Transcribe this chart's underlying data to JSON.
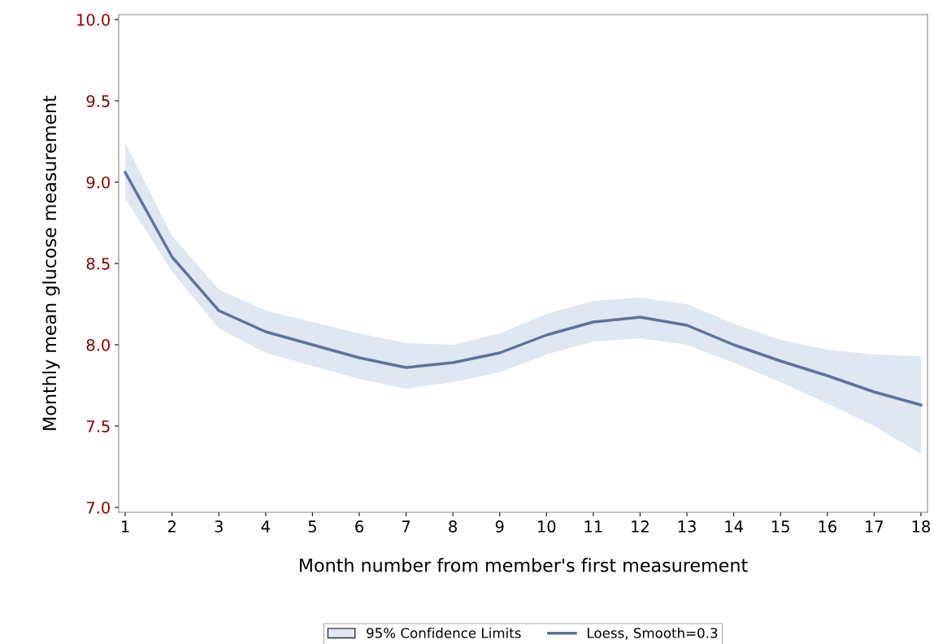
{
  "chart_data": {
    "type": "line",
    "xlabel": "Month number from member's first measurement",
    "ylabel": "Monthly mean glucose measurement",
    "annotations": [
      "95% Confidence Limits"
    ],
    "x": [
      1,
      2,
      3,
      4,
      5,
      6,
      7,
      8,
      9,
      10,
      11,
      12,
      13,
      14,
      15,
      16,
      17,
      18
    ],
    "series": [
      {
        "name": "Loess, Smooth=0.3",
        "color": "#5f7399",
        "values": [
          9.06,
          8.54,
          8.21,
          8.08,
          8.0,
          7.92,
          7.86,
          7.89,
          7.95,
          8.06,
          8.14,
          8.17,
          8.12,
          8.0,
          7.9,
          7.81,
          7.71,
          7.63
        ],
        "upper": [
          9.24,
          8.67,
          8.34,
          8.21,
          8.14,
          8.07,
          8.01,
          8.0,
          8.07,
          8.19,
          8.27,
          8.29,
          8.25,
          8.13,
          8.03,
          7.97,
          7.94,
          7.93
        ],
        "lower": [
          8.9,
          8.45,
          8.1,
          7.95,
          7.87,
          7.79,
          7.73,
          7.77,
          7.83,
          7.94,
          8.02,
          8.04,
          8.0,
          7.89,
          7.77,
          7.64,
          7.5,
          7.33
        ]
      }
    ],
    "xlim": [
      0.86,
      18.14
    ],
    "xticks": [
      1,
      2,
      3,
      4,
      5,
      6,
      7,
      8,
      9,
      10,
      11,
      12,
      13,
      14,
      15,
      16,
      17,
      18
    ],
    "ylim": [
      6.97,
      10.03
    ],
    "yticks": [
      {
        "value": 7,
        "label": "7.0"
      },
      7.5,
      {
        "value": 8,
        "label": "8.0"
      },
      8.5,
      {
        "value": 9,
        "label": "9.0"
      },
      9.5,
      {
        "value": 10,
        "label": "10.0"
      }
    ],
    "grid": false,
    "legend": "bottom",
    "marker": "none",
    "line_style": "solid"
  }
}
